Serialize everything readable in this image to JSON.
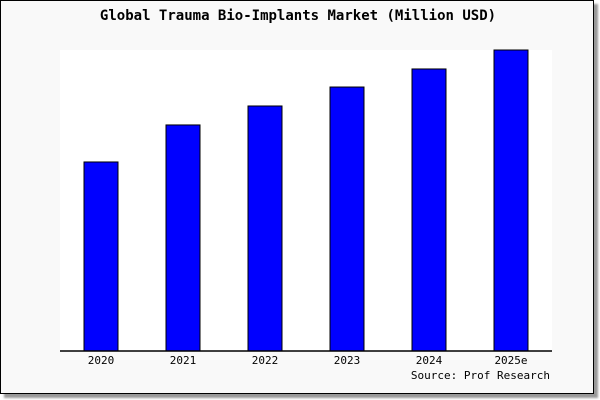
{
  "chart_data": {
    "type": "bar",
    "title": "Global Trauma Bio-Implants Market (Million USD)",
    "categories": [
      "2020",
      "2021",
      "2022",
      "2023",
      "2024",
      "2025e"
    ],
    "values": [
      62.8,
      75.1,
      81.4,
      87.7,
      93.7,
      100
    ],
    "ylim": [
      0,
      100
    ],
    "xlabel": "",
    "ylabel": "",
    "grid": false,
    "bar_color": "#0000ff",
    "source": "Source: Prof Research"
  }
}
